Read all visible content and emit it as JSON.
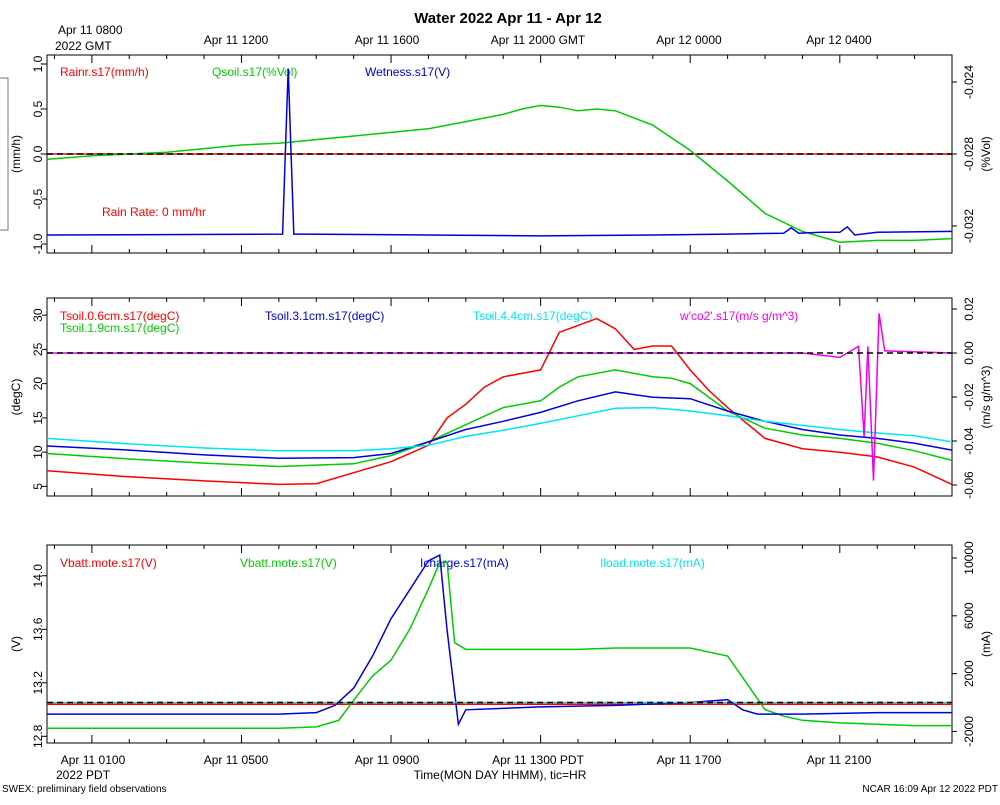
{
  "title": "Water 2022 Apr 11 - Apr 12",
  "top_time_labels": [
    "Apr 11 0800",
    "2022 GMT",
    "Apr 11 1200",
    "Apr 11 1600",
    "Apr 11 2000 GMT",
    "Apr 12 0000",
    "Apr 12 0400"
  ],
  "bottom_time_labels": [
    "Apr 11 0100",
    "Apr 11 0500",
    "Apr 11 0900",
    "Apr 11 1300 PDT",
    "Apr 11 1700",
    "Apr 11 2100"
  ],
  "bottom_year_label": "2022 PDT",
  "xlabel": "Time(MON DAY HHMM), tic=HR",
  "footer_left": "SWEX: preliminary field observations",
  "footer_right": "NCAR 16:09 Apr 12 2022 PDT",
  "colors": {
    "red": "#ff0000",
    "green": "#00cc00",
    "blue": "#0000dd",
    "cyan": "#00e5ee",
    "magenta": "#ee00ee",
    "black": "#000000"
  },
  "chart_data": [
    {
      "type": "line",
      "panel": "top",
      "x_unit": "hours since Apr 11 0000 PDT",
      "xlim": [
        -0.2,
        24
      ],
      "ylabel_left": "(mm/h)",
      "ylabel_right": "(%Vol)",
      "ylim_left": [
        -1.1,
        1.1
      ],
      "ylim_right": [
        -0.0335,
        -0.0225
      ],
      "yticks_left": [
        "1.0",
        "0.5",
        "0.0",
        "-0.5",
        "-1.0"
      ],
      "yticks_right": [
        "-0.024",
        "-0.028",
        "-0.032"
      ],
      "annotation": "Rain Rate: 0 mm/hr",
      "series": [
        {
          "name": "Rainr.s17(mm/h)",
          "color": "red",
          "axis": "left",
          "x": [
            -0.2,
            24
          ],
          "y": [
            0.0,
            0.0
          ]
        },
        {
          "name": "Qsoil.s17(%Vol)",
          "color": "green",
          "axis": "right",
          "x": [
            -0.2,
            1,
            2,
            3,
            4,
            5,
            6,
            7,
            8,
            9,
            10,
            11,
            12,
            12.5,
            13,
            13.5,
            14,
            14.5,
            15,
            16,
            17,
            18,
            19,
            20,
            21,
            22,
            23,
            24
          ],
          "y": [
            -0.0283,
            -0.0281,
            -0.028,
            -0.0279,
            -0.0277,
            -0.0275,
            -0.0274,
            -0.0272,
            -0.027,
            -0.0268,
            -0.0266,
            -0.0262,
            -0.0258,
            -0.0255,
            -0.0253,
            -0.0254,
            -0.0256,
            -0.0255,
            -0.0256,
            -0.0264,
            -0.0278,
            -0.0295,
            -0.0313,
            -0.0323,
            -0.0329,
            -0.0328,
            -0.0328,
            -0.0327
          ]
        },
        {
          "name": "Wetness.s17(V)",
          "color": "blue",
          "axis": "left",
          "x": [
            -0.2,
            6.1,
            6.25,
            6.4,
            6.55,
            10,
            13,
            16,
            18,
            19.5,
            19.7,
            19.9,
            20.5,
            21,
            21.2,
            21.4,
            22,
            24
          ],
          "y": [
            -0.9,
            -0.89,
            0.95,
            -0.89,
            -0.89,
            -0.9,
            -0.91,
            -0.9,
            -0.89,
            -0.88,
            -0.82,
            -0.88,
            -0.87,
            -0.87,
            -0.81,
            -0.9,
            -0.87,
            -0.86
          ]
        }
      ]
    },
    {
      "type": "line",
      "panel": "middle",
      "x_unit": "hours since Apr 11 0000 PDT",
      "xlim": [
        -0.2,
        24
      ],
      "ylabel_left": "(degC)",
      "ylabel_right": "(m/s g/m^3)",
      "ylim_left": [
        3.6,
        32.5
      ],
      "ylim_right": [
        -0.065,
        0.025
      ],
      "yticks_left": [
        "30",
        "25",
        "20",
        "15",
        "10",
        "5"
      ],
      "yticks_right": [
        "0.02",
        "0.00",
        "-0.02",
        "-0.04",
        "-0.06"
      ],
      "series": [
        {
          "name": "Tsoil.0.6cm.s17(degC)",
          "color": "red",
          "axis": "left",
          "x": [
            -0.2,
            2,
            4,
            6,
            7,
            8,
            9,
            10,
            10.5,
            11,
            11.5,
            12,
            12.5,
            13,
            13.5,
            14,
            14.5,
            15,
            15.5,
            16,
            16.5,
            17,
            17.5,
            18,
            19,
            20,
            21,
            22,
            23,
            24
          ],
          "y": [
            7.3,
            6.4,
            5.8,
            5.3,
            5.4,
            7,
            8.6,
            11,
            15,
            17,
            19.5,
            21,
            21.5,
            22,
            27.5,
            28.5,
            29.5,
            28,
            25,
            25.5,
            25.5,
            22,
            19,
            16.5,
            12,
            10.5,
            10,
            9.3,
            7.8,
            5.3
          ]
        },
        {
          "name": "Tsoil.1.9cm.s17(degC)",
          "color": "green",
          "axis": "left",
          "x": [
            -0.2,
            2,
            4,
            6,
            8,
            9,
            10,
            11,
            12,
            13,
            13.5,
            14,
            15,
            16,
            16.5,
            17,
            18,
            19,
            20,
            21,
            22,
            23,
            24
          ],
          "y": [
            9.8,
            9.0,
            8.4,
            7.9,
            8.3,
            9.5,
            11.5,
            14,
            16.5,
            17.5,
            19.5,
            21,
            22,
            21,
            20.8,
            20,
            16,
            13.5,
            12.5,
            12,
            11.3,
            10.2,
            8.8
          ]
        },
        {
          "name": "Tsoil.3.1cm.s17(degC)",
          "color": "blue",
          "axis": "left",
          "x": [
            -0.2,
            2,
            4,
            6,
            8,
            9,
            10,
            11,
            12,
            13,
            14,
            15,
            16,
            17,
            18,
            19,
            20,
            21,
            22,
            23,
            24
          ],
          "y": [
            10.9,
            10.3,
            9.6,
            9.1,
            9.2,
            9.8,
            11.5,
            13.3,
            14.5,
            15.8,
            17.5,
            18.8,
            18,
            17.8,
            16,
            14.5,
            13.3,
            12.5,
            12.0,
            11.3,
            10.3
          ]
        },
        {
          "name": "Tsoil.4.4cm.s17(degC)",
          "color": "cyan",
          "axis": "left",
          "x": [
            -0.2,
            2,
            4,
            6,
            8,
            9,
            10,
            11,
            12,
            13,
            14,
            15,
            16,
            17,
            18,
            19,
            20,
            21,
            22,
            23,
            24
          ],
          "y": [
            12.0,
            11.2,
            10.6,
            10.2,
            10.2,
            10.5,
            11,
            12.3,
            13.2,
            14.2,
            15.3,
            16.4,
            16.5,
            16,
            15.3,
            14.5,
            13.9,
            13.3,
            12.8,
            12.4,
            11.5
          ]
        },
        {
          "name": "w'co2'.s17(m/s g/m^3)",
          "color": "magenta",
          "axis": "right",
          "x": [
            -0.2,
            6,
            9,
            11,
            12.5,
            14,
            15,
            16,
            17,
            18,
            19,
            20,
            21,
            21.5,
            21.65,
            21.75,
            21.9,
            22.05,
            22.2,
            24
          ],
          "y": [
            0.0,
            0.0,
            0.0,
            0.0,
            0.0,
            0.0,
            0.0,
            0.0,
            0.0,
            0.0,
            0.0,
            0.0,
            -0.002,
            0.003,
            -0.038,
            0.003,
            -0.058,
            0.018,
            0.001,
            0.0
          ]
        }
      ]
    },
    {
      "type": "line",
      "panel": "bottom",
      "x_unit": "hours since Apr 11 0000 PDT",
      "xlim": [
        -0.2,
        24
      ],
      "ylabel_left": "(V)",
      "ylabel_right": "(mA)",
      "ylim_left": [
        12.75,
        14.23
      ],
      "ylim_right": [
        -2800,
        10900
      ],
      "yticks_left": [
        "14.0",
        "13.6",
        "13.2",
        "12.8"
      ],
      "yticks_right": [
        "10000",
        "6000",
        "2000",
        "-2000"
      ],
      "series": [
        {
          "name": "Vbatt.mote.s17(V)",
          "color": "red",
          "axis": "left",
          "x": [
            -0.2,
            24
          ],
          "y": [
            13.04,
            13.04
          ]
        },
        {
          "name": "Vbatt.mote.s17(V)",
          "color": "green",
          "axis": "left",
          "x": [
            -0.2,
            2,
            4,
            6,
            7,
            7.6,
            8,
            8.5,
            9,
            9.5,
            10,
            10.3,
            10.5,
            10.7,
            11,
            12,
            13,
            14,
            15,
            16,
            17,
            18,
            19,
            19.5,
            20,
            21,
            22,
            23,
            24
          ],
          "y": [
            12.86,
            12.86,
            12.86,
            12.86,
            12.87,
            12.92,
            13.07,
            13.25,
            13.37,
            13.6,
            13.9,
            14.1,
            14.1,
            13.5,
            13.45,
            13.45,
            13.45,
            13.45,
            13.46,
            13.46,
            13.46,
            13.4,
            13.0,
            12.95,
            12.92,
            12.9,
            12.89,
            12.88,
            12.88
          ]
        },
        {
          "name": "Icharge.s17(mA)",
          "color": "blue",
          "axis": "right",
          "x": [
            -0.2,
            2,
            4,
            6,
            7,
            7.5,
            8,
            8.5,
            9,
            9.5,
            10,
            10.3,
            10.5,
            10.8,
            11,
            13,
            15,
            17,
            18,
            18.4,
            18.8,
            20,
            22,
            24
          ],
          "y": [
            -800,
            -800,
            -800,
            -800,
            -700,
            -200,
            1000,
            3200,
            5800,
            7800,
            9800,
            10200,
            5000,
            -1500,
            -500,
            -300,
            -200,
            0,
            200,
            -500,
            -800,
            -800,
            -700,
            -700
          ]
        },
        {
          "name": "Iload.mote.s17(mA)",
          "color": "cyan",
          "axis": "right",
          "x": [
            -0.2,
            24
          ],
          "y": [
            0,
            0
          ]
        }
      ]
    }
  ]
}
